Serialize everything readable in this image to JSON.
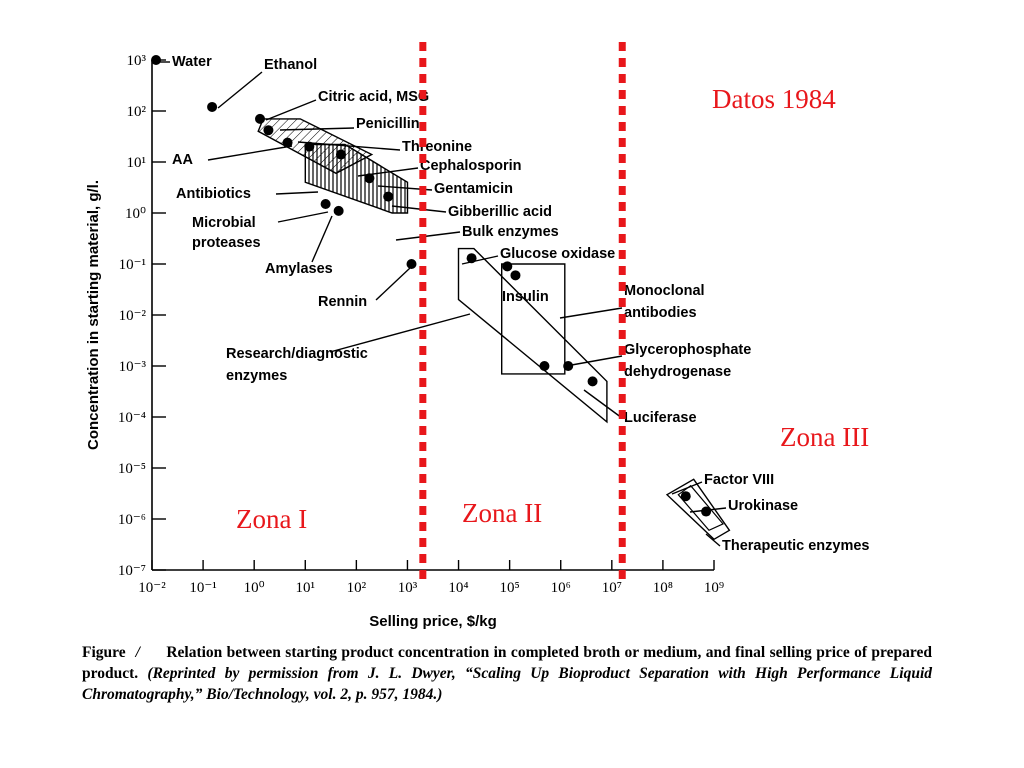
{
  "chart_data": {
    "type": "scatter",
    "xlabel": "Selling price, $/kg",
    "ylabel": "Concentration in starting material, g/l.",
    "xscale": "log",
    "yscale": "log",
    "xlim": [
      0.01,
      1000000000.0
    ],
    "ylim": [
      1e-07,
      1000
    ],
    "grid": false,
    "x_ticks": [
      {
        "value": 0.01,
        "label": "10⁻²"
      },
      {
        "value": 0.1,
        "label": "10⁻¹"
      },
      {
        "value": 1,
        "label": "10⁰"
      },
      {
        "value": 10,
        "label": "10¹"
      },
      {
        "value": 100,
        "label": "10²"
      },
      {
        "value": 1000,
        "label": "10³"
      },
      {
        "value": 10000,
        "label": "10⁴"
      },
      {
        "value": 100000,
        "label": "10⁵"
      },
      {
        "value": 1000000,
        "label": "10⁶"
      },
      {
        "value": 10000000,
        "label": "10⁷"
      },
      {
        "value": 100000000,
        "label": "10⁸"
      },
      {
        "value": 1000000000,
        "label": "10⁹"
      }
    ],
    "y_ticks": [
      {
        "value": 1e-07,
        "label": "10⁻⁷"
      },
      {
        "value": 1e-06,
        "label": "10⁻⁶"
      },
      {
        "value": 1e-05,
        "label": "10⁻⁵"
      },
      {
        "value": 0.0001,
        "label": "10⁻⁴"
      },
      {
        "value": 0.001,
        "label": "10⁻³"
      },
      {
        "value": 0.01,
        "label": "10⁻²"
      },
      {
        "value": 0.1,
        "label": "10⁻¹"
      },
      {
        "value": 1,
        "label": "10⁰"
      },
      {
        "value": 10,
        "label": "10¹"
      },
      {
        "value": 100,
        "label": "10²"
      },
      {
        "value": 1000,
        "label": "10³"
      }
    ],
    "points": [
      {
        "label": "Water",
        "x": 0.012,
        "y": 1000
      },
      {
        "label": "Ethanol",
        "x": 0.15,
        "y": 120
      },
      {
        "label": "Citric acid, MSG",
        "x": 1.3,
        "y": 70
      },
      {
        "label": "Penicillin",
        "x": 1.9,
        "y": 42
      },
      {
        "label": "AA",
        "x": 4.5,
        "y": 24
      },
      {
        "label": "Threonine",
        "x": 12,
        "y": 20
      },
      {
        "label": "Cephalosporin",
        "x": 50,
        "y": 14
      },
      {
        "label": "Gentamicin",
        "x": 180,
        "y": 4.8
      },
      {
        "label": "Gibberillic acid",
        "x": 420,
        "y": 2.1
      },
      {
        "label": "Microbial proteases",
        "x": 25,
        "y": 1.5
      },
      {
        "label": "Amylases",
        "x": 45,
        "y": 1.1
      },
      {
        "label": "Rennin",
        "x": 1200,
        "y": 0.1
      },
      {
        "label": "Glucose oxidase",
        "x": 18000,
        "y": 0.13
      },
      {
        "label": "Insulin (a)",
        "x": 90000,
        "y": 0.09
      },
      {
        "label": "Insulin (b)",
        "x": 130000,
        "y": 0.06
      },
      {
        "label": "Glycerophosphate dehydrogenase (a)",
        "x": 480000,
        "y": 0.001
      },
      {
        "label": "Glycerophosphate dehydrogenase (b)",
        "x": 1400000,
        "y": 0.001
      },
      {
        "label": "Luciferase",
        "x": 4200000,
        "y": 0.0005
      },
      {
        "label": "Factor VIII",
        "x": 280000000,
        "y": 2.8e-06
      },
      {
        "label": "Urokinase",
        "x": 700000000,
        "y": 1.4e-06
      }
    ],
    "annotations": [
      "Water",
      "Ethanol",
      "Citric acid, MSG",
      "Penicillin",
      "Threonine",
      "AA",
      "Cephalosporin",
      "Gentamicin",
      "Antibiotics",
      "Gibberillic acid",
      "Microbial",
      "proteases",
      "Bulk enzymes",
      "Amylases",
      "Rennin",
      "Glucose oxidase",
      "Insulin",
      "Monoclonal",
      "antibodies",
      "Research/diagnostic",
      "enzymes",
      "Glycerophosphate",
      "dehydrogenase",
      "Luciferase",
      "Factor VIII",
      "Urokinase",
      "Therapeutic enzymes"
    ],
    "zone_boundaries": [
      2000,
      16000000
    ],
    "zone_labels": [
      "Zona I",
      "Zona II",
      "Zona III"
    ],
    "title": "Datos 1984",
    "accent_color": "#e8171b"
  },
  "caption": {
    "figure_word": "Figure",
    "figure_number": "/",
    "text": "Relation between starting product concentration in completed broth or medium, and final selling price of prepared product.",
    "citation": "(Reprinted by permission from J. L. Dwyer, “Scaling Up Bioproduct Separation with High Performance Liquid Chromatography,” Bio/Technology, vol. 2, p. 957, 1984.)"
  }
}
